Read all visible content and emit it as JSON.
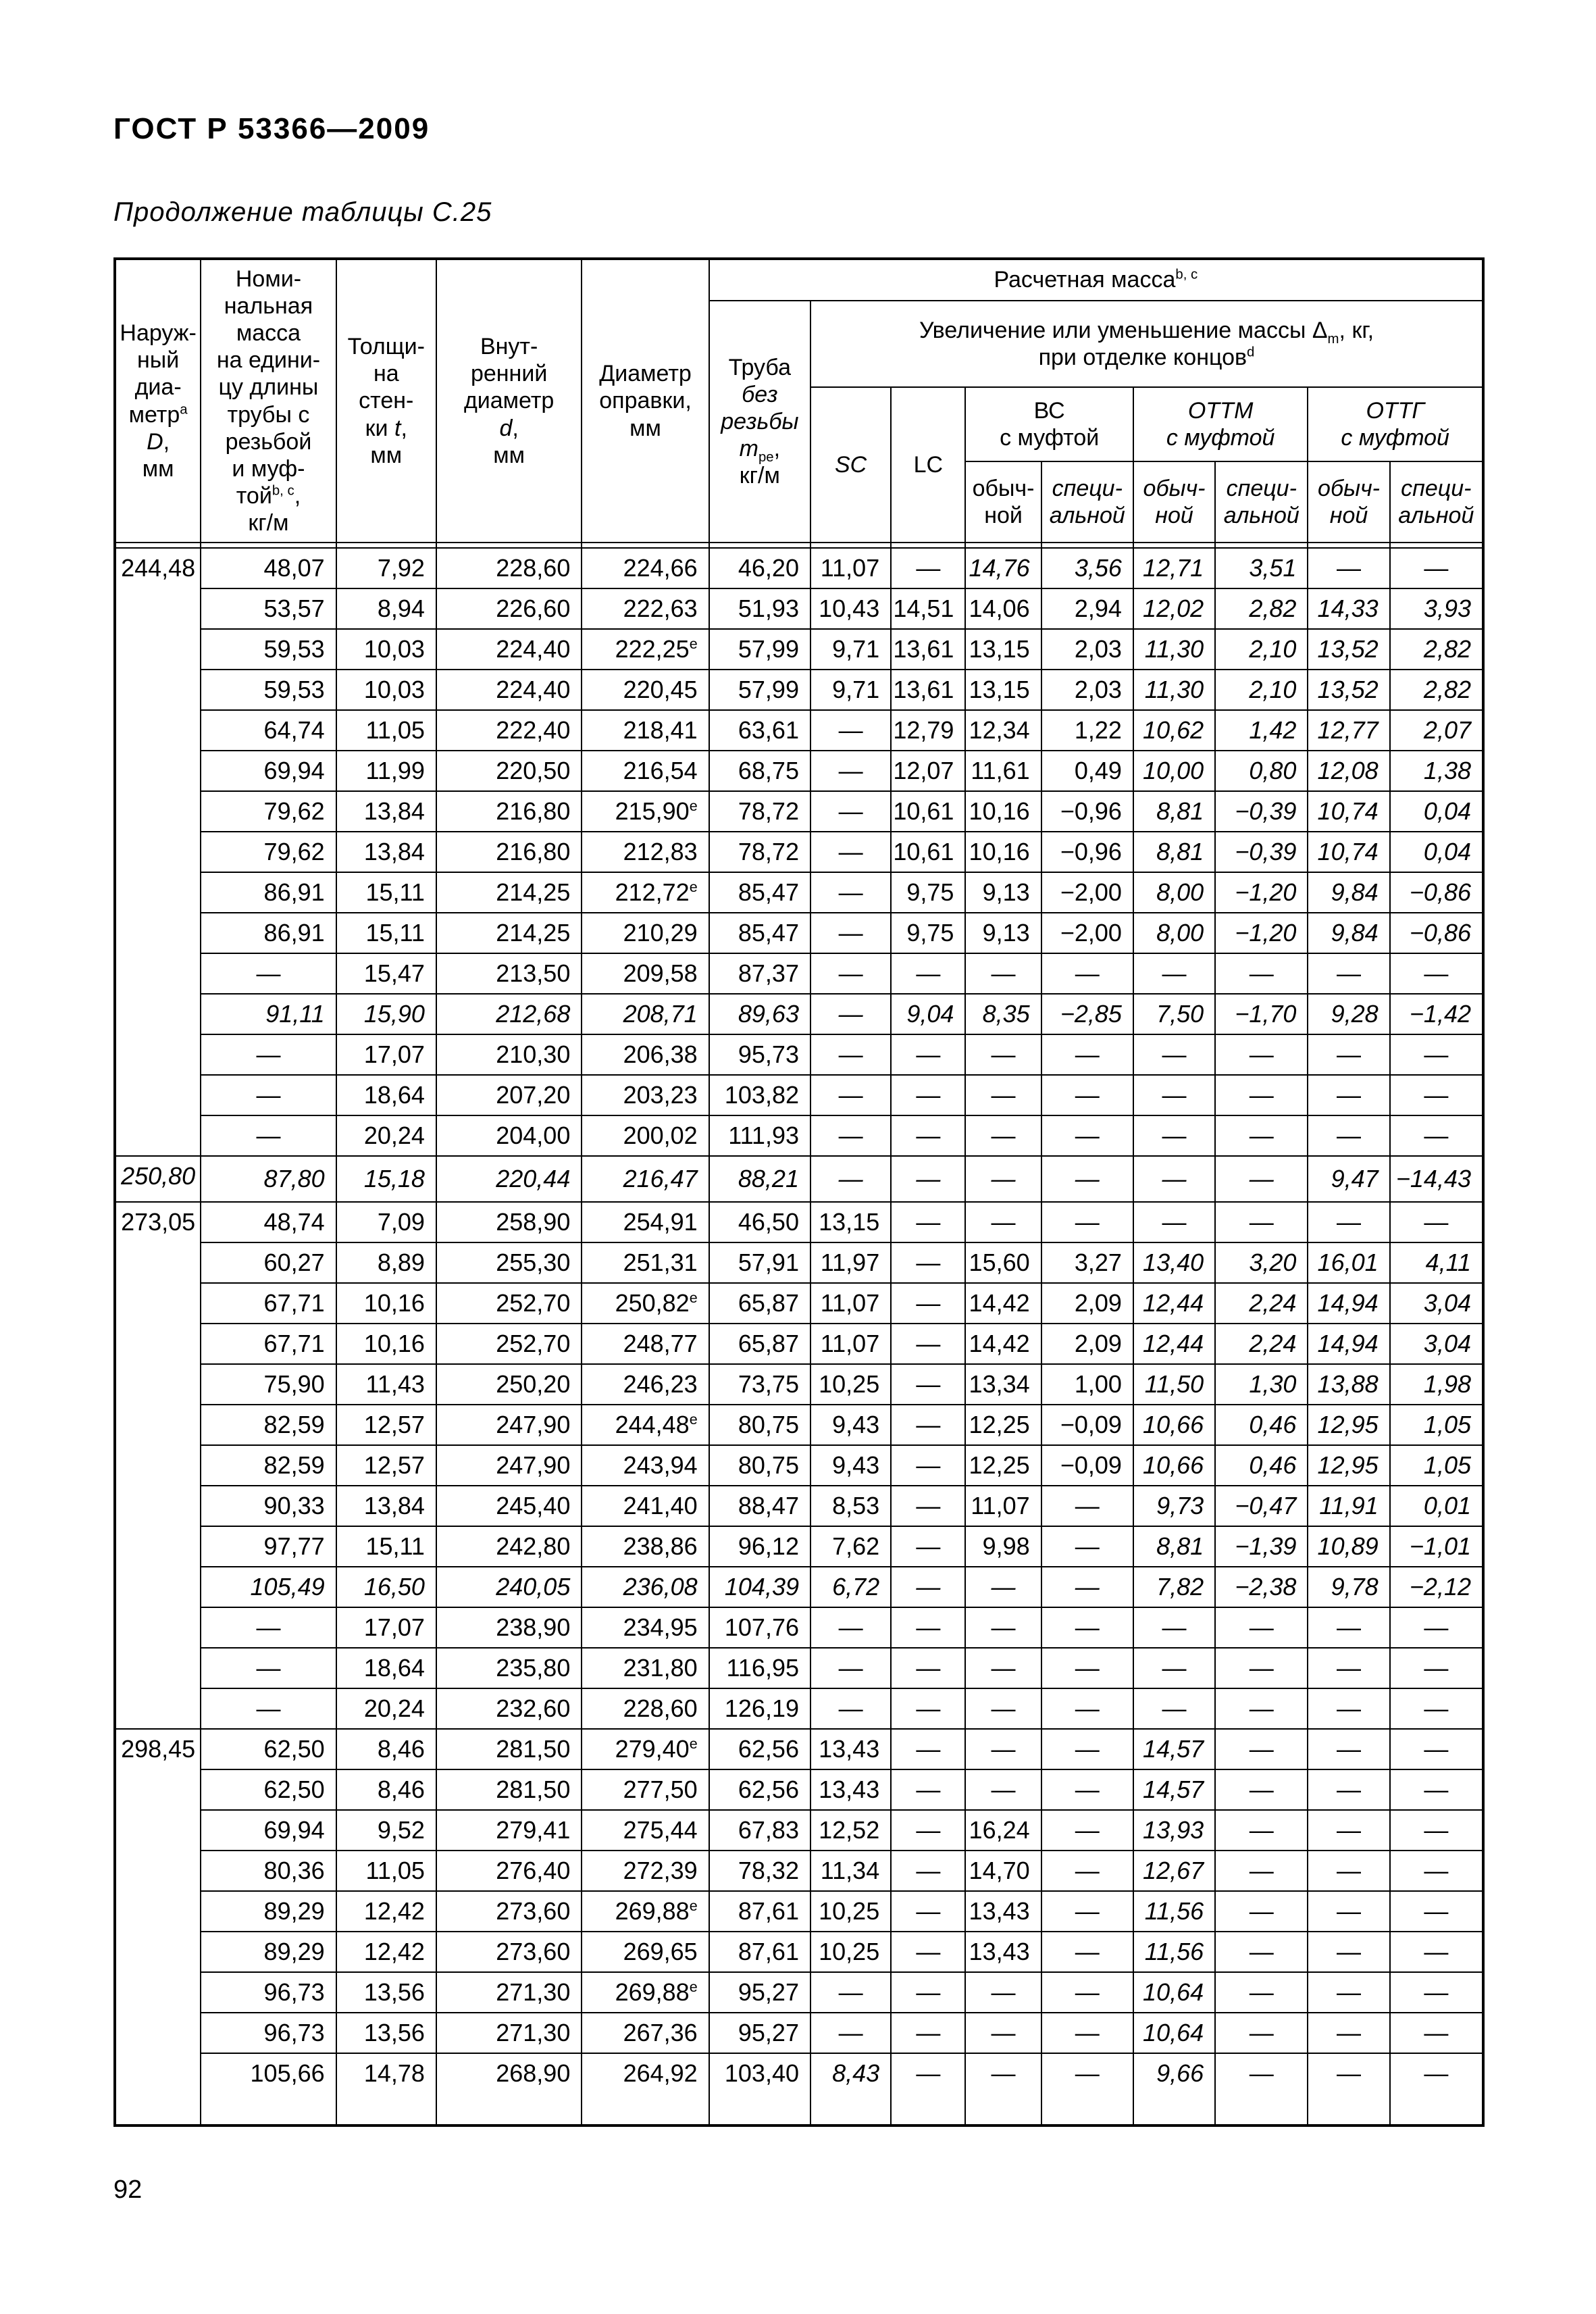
{
  "page": {
    "standard_code": "ГОСТ Р 53366—2009",
    "table_continuation": "Продолжение таблицы С.25",
    "page_number": "92"
  },
  "table": {
    "headers": {
      "outer_diameter": "Наруж-<br>ный<br>диа-<br>метр<sup>a</sup><br><i>D</i>,<br>мм",
      "nominal_mass": "Номи-<br>нальная<br>масса<br>на едини-<br>цу длины<br>трубы  с<br>резьбой<br>и муф-<br>той<sup>b, c</sup>,<br>кг/м",
      "wall_thickness": "Толщи-<br>на<br>стен-<br>ки <i>t</i>,<br>мм",
      "inner_diameter": "Внут-<br>ренний<br>диаметр<br><i>d</i>,<br>мм",
      "mandrel_diameter": "Диаметр<br>оправки,<br>мм",
      "calculated_mass": "Расчетная масса<sup>b, c</sup>",
      "pipe_without_thread": "Труба<br><i>без</i><br><i>резьбы</i><br><i>m</i><sub>ре</sub>,<br>кг/м",
      "mass_delta": "Увеличение или уменьшение массы Δ<sub>m</sub>, кг,<br>при отделке концов<sup>d</sup>",
      "sc": "<i>SC</i>",
      "lc": "LC",
      "vc_coupling": "ВС<br>с муфтой",
      "ottm_coupling": "ОТТМ<br>с муфтой",
      "ottg_coupling": "ОТТГ<br>с муфтой",
      "ordinary": "обыч-<br>ной",
      "special": "специ-<br>альной"
    },
    "groups": [
      {
        "label": "244,48",
        "span": 15,
        "italic": false
      },
      {
        "label": "250,80",
        "span": 1,
        "italic": true
      },
      {
        "label": "273,05",
        "span": 13,
        "italic": false
      },
      {
        "label": "298,45",
        "span": 9,
        "italic": false
      }
    ],
    "rows": [
      {
        "c": [
          "48,07",
          "7,92",
          "228,60",
          "224,66",
          "46,20",
          "11,07",
          "—",
          "14,76",
          "3,56",
          "12,71",
          "3,51",
          "—",
          "—"
        ],
        "i": [
          7,
          8,
          9,
          10
        ]
      },
      {
        "c": [
          "53,57",
          "8,94",
          "226,60",
          "222,63",
          "51,93",
          "10,43",
          "14,51",
          "14,06",
          "2,94",
          "12,02",
          "2,82",
          "14,33",
          "3,93"
        ],
        "i": [
          9,
          10,
          11,
          12
        ]
      },
      {
        "c": [
          "59,53",
          "10,03",
          "224,40",
          "222,25<sup>e</sup>",
          "57,99",
          "9,71",
          "13,61",
          "13,15",
          "2,03",
          "11,30",
          "2,10",
          "13,52",
          "2,82"
        ],
        "i": [
          9,
          10,
          11,
          12
        ]
      },
      {
        "c": [
          "59,53",
          "10,03",
          "224,40",
          "220,45",
          "57,99",
          "9,71",
          "13,61",
          "13,15",
          "2,03",
          "11,30",
          "2,10",
          "13,52",
          "2,82"
        ],
        "i": [
          9,
          10,
          11,
          12
        ]
      },
      {
        "c": [
          "64,74",
          "11,05",
          "222,40",
          "218,41",
          "63,61",
          "—",
          "12,79",
          "12,34",
          "1,22",
          "10,62",
          "1,42",
          "12,77",
          "2,07"
        ],
        "i": [
          9,
          10,
          11,
          12
        ]
      },
      {
        "c": [
          "69,94",
          "11,99",
          "220,50",
          "216,54",
          "68,75",
          "—",
          "12,07",
          "11,61",
          "0,49",
          "10,00",
          "0,80",
          "12,08",
          "1,38"
        ],
        "i": [
          9,
          10,
          11,
          12
        ]
      },
      {
        "c": [
          "79,62",
          "13,84",
          "216,80",
          "215,90<sup>e</sup>",
          "78,72",
          "—",
          "10,61",
          "10,16",
          "−0,96",
          "8,81",
          "−0,39",
          "10,74",
          "0,04"
        ],
        "i": [
          9,
          10,
          11,
          12
        ]
      },
      {
        "c": [
          "79,62",
          "13,84",
          "216,80",
          "212,83",
          "78,72",
          "—",
          "10,61",
          "10,16",
          "−0,96",
          "8,81",
          "−0,39",
          "10,74",
          "0,04"
        ],
        "i": [
          9,
          10,
          11,
          12
        ]
      },
      {
        "c": [
          "86,91",
          "15,11",
          "214,25",
          "212,72<sup>e</sup>",
          "85,47",
          "—",
          "9,75",
          "9,13",
          "−2,00",
          "8,00",
          "−1,20",
          "9,84",
          "−0,86"
        ],
        "i": [
          9,
          10,
          11,
          12
        ]
      },
      {
        "c": [
          "86,91",
          "15,11",
          "214,25",
          "210,29",
          "85,47",
          "—",
          "9,75",
          "9,13",
          "−2,00",
          "8,00",
          "−1,20",
          "9,84",
          "−0,86"
        ],
        "i": [
          9,
          10,
          11,
          12
        ]
      },
      {
        "c": [
          "—",
          "15,47",
          "213,50",
          "209,58",
          "87,37",
          "—",
          "—",
          "—",
          "—",
          "—",
          "—",
          "—",
          "—"
        ],
        "i": []
      },
      {
        "c": [
          "91,11",
          "15,90",
          "212,68",
          "208,71",
          "89,63",
          "—",
          "9,04",
          "8,35",
          "−2,85",
          "7,50",
          "−1,70",
          "9,28",
          "−1,42"
        ],
        "i": "all"
      },
      {
        "c": [
          "—",
          "17,07",
          "210,30",
          "206,38",
          "95,73",
          "—",
          "—",
          "—",
          "—",
          "—",
          "—",
          "—",
          "—"
        ],
        "i": []
      },
      {
        "c": [
          "—",
          "18,64",
          "207,20",
          "203,23",
          "103,82",
          "—",
          "—",
          "—",
          "—",
          "—",
          "—",
          "—",
          "—"
        ],
        "i": []
      },
      {
        "c": [
          "—",
          "20,24",
          "204,00",
          "200,02",
          "111,93",
          "—",
          "—",
          "—",
          "—",
          "—",
          "—",
          "—",
          "—"
        ],
        "i": []
      },
      {
        "c": [
          "87,80",
          "15,18",
          "220,44",
          "216,47",
          "88,21",
          "—",
          "—",
          "—",
          "—",
          "—",
          "—",
          "9,47",
          "−14,43"
        ],
        "i": "all"
      },
      {
        "c": [
          "48,74",
          "7,09",
          "258,90",
          "254,91",
          "46,50",
          "13,15",
          "—",
          "—",
          "—",
          "—",
          "—",
          "—",
          "—"
        ],
        "i": []
      },
      {
        "c": [
          "60,27",
          "8,89",
          "255,30",
          "251,31",
          "57,91",
          "11,97",
          "—",
          "15,60",
          "3,27",
          "13,40",
          "3,20",
          "16,01",
          "4,11"
        ],
        "i": [
          9,
          10,
          11,
          12
        ]
      },
      {
        "c": [
          "67,71",
          "10,16",
          "252,70",
          "250,82<sup>e</sup>",
          "65,87",
          "11,07",
          "—",
          "14,42",
          "2,09",
          "12,44",
          "2,24",
          "14,94",
          "3,04"
        ],
        "i": [
          9,
          10,
          11,
          12
        ]
      },
      {
        "c": [
          "67,71",
          "10,16",
          "252,70",
          "248,77",
          "65,87",
          "11,07",
          "—",
          "14,42",
          "2,09",
          "12,44",
          "2,24",
          "14,94",
          "3,04"
        ],
        "i": [
          9,
          10,
          11,
          12
        ]
      },
      {
        "c": [
          "75,90",
          "11,43",
          "250,20",
          "246,23",
          "73,75",
          "10,25",
          "—",
          "13,34",
          "1,00",
          "11,50",
          "1,30",
          "13,88",
          "1,98"
        ],
        "i": [
          9,
          10,
          11,
          12
        ]
      },
      {
        "c": [
          "82,59",
          "12,57",
          "247,90",
          "244,48<sup>e</sup>",
          "80,75",
          "9,43",
          "—",
          "12,25",
          "−0,09",
          "10,66",
          "0,46",
          "12,95",
          "1,05"
        ],
        "i": [
          9,
          10,
          11,
          12
        ]
      },
      {
        "c": [
          "82,59",
          "12,57",
          "247,90",
          "243,94",
          "80,75",
          "9,43",
          "—",
          "12,25",
          "−0,09",
          "10,66",
          "0,46",
          "12,95",
          "1,05"
        ],
        "i": [
          9,
          10,
          11,
          12
        ]
      },
      {
        "c": [
          "90,33",
          "13,84",
          "245,40",
          "241,40",
          "88,47",
          "8,53",
          "—",
          "11,07",
          "—",
          "9,73",
          "−0,47",
          "11,91",
          "0,01"
        ],
        "i": [
          9,
          10,
          11,
          12
        ]
      },
      {
        "c": [
          "97,77",
          "15,11",
          "242,80",
          "238,86",
          "96,12",
          "7,62",
          "—",
          "9,98",
          "—",
          "8,81",
          "−1,39",
          "10,89",
          "−1,01"
        ],
        "i": [
          9,
          10,
          11,
          12
        ]
      },
      {
        "c": [
          "105,49",
          "16,50",
          "240,05",
          "236,08",
          "104,39",
          "6,72",
          "—",
          "—",
          "—",
          "7,82",
          "−2,38",
          "9,78",
          "−2,12"
        ],
        "i": "all"
      },
      {
        "c": [
          "—",
          "17,07",
          "238,90",
          "234,95",
          "107,76",
          "—",
          "—",
          "—",
          "—",
          "—",
          "—",
          "—",
          "—"
        ],
        "i": []
      },
      {
        "c": [
          "—",
          "18,64",
          "235,80",
          "231,80",
          "116,95",
          "—",
          "—",
          "—",
          "—",
          "—",
          "—",
          "—",
          "—"
        ],
        "i": []
      },
      {
        "c": [
          "—",
          "20,24",
          "232,60",
          "228,60",
          "126,19",
          "—",
          "—",
          "—",
          "—",
          "—",
          "—",
          "—",
          "—"
        ],
        "i": []
      },
      {
        "c": [
          "62,50",
          "8,46",
          "281,50",
          "279,40<sup>e</sup>",
          "62,56",
          "13,43",
          "—",
          "—",
          "—",
          "14,57",
          "—",
          "—",
          "—"
        ],
        "i": [
          9
        ]
      },
      {
        "c": [
          "62,50",
          "8,46",
          "281,50",
          "277,50",
          "62,56",
          "13,43",
          "—",
          "—",
          "—",
          "14,57",
          "—",
          "—",
          "—"
        ],
        "i": [
          9
        ]
      },
      {
        "c": [
          "69,94",
          "9,52",
          "279,41",
          "275,44",
          "67,83",
          "12,52",
          "—",
          "16,24",
          "—",
          "13,93",
          "—",
          "—",
          "—"
        ],
        "i": [
          9
        ]
      },
      {
        "c": [
          "80,36",
          "11,05",
          "276,40",
          "272,39",
          "78,32",
          "11,34",
          "—",
          "14,70",
          "—",
          "12,67",
          "—",
          "—",
          "—"
        ],
        "i": [
          9
        ]
      },
      {
        "c": [
          "89,29",
          "12,42",
          "273,60",
          "269,88<sup>e</sup>",
          "87,61",
          "10,25",
          "—",
          "13,43",
          "—",
          "11,56",
          "—",
          "—",
          "—"
        ],
        "i": [
          9
        ]
      },
      {
        "c": [
          "89,29",
          "12,42",
          "273,60",
          "269,65",
          "87,61",
          "10,25",
          "—",
          "13,43",
          "—",
          "11,56",
          "—",
          "—",
          "—"
        ],
        "i": [
          9
        ]
      },
      {
        "c": [
          "96,73",
          "13,56",
          "271,30",
          "269,88<sup>e</sup>",
          "95,27",
          "—",
          "—",
          "—",
          "—",
          "10,64",
          "—",
          "—",
          "—"
        ],
        "i": [
          9
        ]
      },
      {
        "c": [
          "96,73",
          "13,56",
          "271,30",
          "267,36",
          "95,27",
          "—",
          "—",
          "—",
          "—",
          "10,64",
          "—",
          "—",
          "—"
        ],
        "i": [
          9
        ]
      },
      {
        "c": [
          "105,66",
          "14,78",
          "268,90",
          "264,92",
          "103,40",
          "8,43",
          "—",
          "—",
          "—",
          "9,66",
          "—",
          "—",
          "—"
        ],
        "i": [
          5,
          9
        ]
      }
    ]
  }
}
